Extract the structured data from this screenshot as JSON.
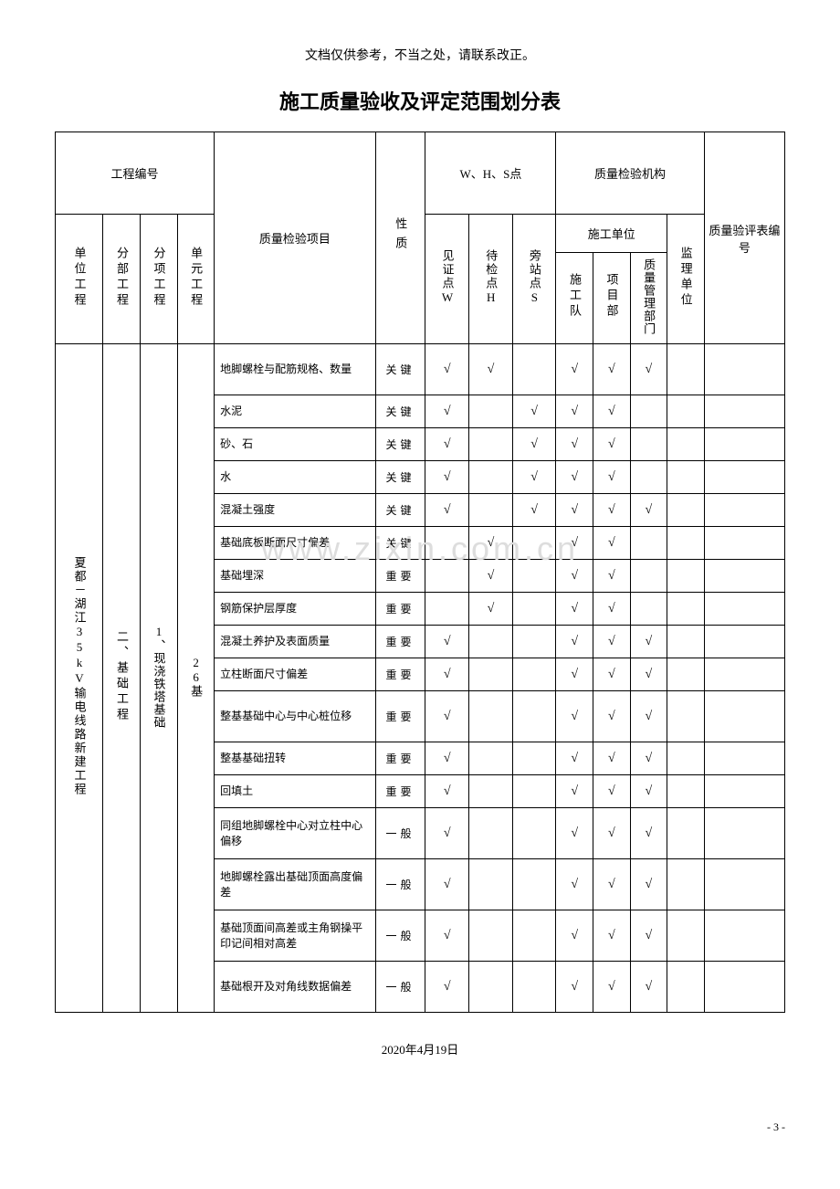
{
  "header_note": "文档仅供参考，不当之处，请联系改正。",
  "title": "施工质量验收及评定范围划分表",
  "headers": {
    "project_number": "工程编号",
    "whs": "W、H、S点",
    "agency": "质量检验机构",
    "form_number": "质量验评表编号",
    "unit_project": "单位工程",
    "sub_project": "分部工程",
    "item_project": "分项工程",
    "unit_element": "单元工程",
    "inspection_item": "质量检验项目",
    "nature": "性质",
    "witness_w": "见证点W",
    "hold_h": "待检点H",
    "side_s": "旁站点S",
    "construction_unit": "施工单位",
    "team": "施工队",
    "project_dept": "项目部",
    "quality_dept": "质量管理部门",
    "supervisor": "监理单位"
  },
  "col1": "夏都－湖江35kV输电线路新建工程",
  "col2": "二、基础工程",
  "col3": "1、现浇铁塔基础",
  "col4": "26基",
  "rows": [
    {
      "item": "地脚螺栓与配筋规格、数量",
      "nature": "关键",
      "w": "√",
      "h": "√",
      "s": "",
      "team": "√",
      "dept": "√",
      "qd": "√",
      "sup": ""
    },
    {
      "item": "水泥",
      "nature": "关键",
      "w": "√",
      "h": "",
      "s": "√",
      "team": "√",
      "dept": "√",
      "qd": "",
      "sup": ""
    },
    {
      "item": "砂、石",
      "nature": "关键",
      "w": "√",
      "h": "",
      "s": "√",
      "team": "√",
      "dept": "√",
      "qd": "",
      "sup": ""
    },
    {
      "item": "水",
      "nature": "关键",
      "w": "√",
      "h": "",
      "s": "√",
      "team": "√",
      "dept": "√",
      "qd": "",
      "sup": ""
    },
    {
      "item": "混凝土强度",
      "nature": "关键",
      "w": "√",
      "h": "",
      "s": "√",
      "team": "√",
      "dept": "√",
      "qd": "√",
      "sup": ""
    },
    {
      "item": "基础底板断面尺寸偏差",
      "nature": "关键",
      "w": "",
      "h": "√",
      "s": "",
      "team": "√",
      "dept": "√",
      "qd": "",
      "sup": ""
    },
    {
      "item": "基础埋深",
      "nature": "重要",
      "w": "",
      "h": "√",
      "s": "",
      "team": "√",
      "dept": "√",
      "qd": "",
      "sup": ""
    },
    {
      "item": "钢筋保护层厚度",
      "nature": "重要",
      "w": "",
      "h": "√",
      "s": "",
      "team": "√",
      "dept": "√",
      "qd": "",
      "sup": ""
    },
    {
      "item": "混凝土养护及表面质量",
      "nature": "重要",
      "w": "√",
      "h": "",
      "s": "",
      "team": "√",
      "dept": "√",
      "qd": "√",
      "sup": ""
    },
    {
      "item": "立柱断面尺寸偏差",
      "nature": "重要",
      "w": "√",
      "h": "",
      "s": "",
      "team": "√",
      "dept": "√",
      "qd": "√",
      "sup": ""
    },
    {
      "item": "整基基础中心与中心桩位移",
      "nature": "重要",
      "w": "√",
      "h": "",
      "s": "",
      "team": "√",
      "dept": "√",
      "qd": "√",
      "sup": ""
    },
    {
      "item": "整基基础扭转",
      "nature": "重要",
      "w": "√",
      "h": "",
      "s": "",
      "team": "√",
      "dept": "√",
      "qd": "√",
      "sup": ""
    },
    {
      "item": "回填土",
      "nature": "重要",
      "w": "√",
      "h": "",
      "s": "",
      "team": "√",
      "dept": "√",
      "qd": "√",
      "sup": ""
    },
    {
      "item": "同组地脚螺栓中心对立柱中心偏移",
      "nature": "一般",
      "w": "√",
      "h": "",
      "s": "",
      "team": "√",
      "dept": "√",
      "qd": "√",
      "sup": ""
    },
    {
      "item": "地脚螺栓露出基础顶面高度偏差",
      "nature": "一般",
      "w": "√",
      "h": "",
      "s": "",
      "team": "√",
      "dept": "√",
      "qd": "√",
      "sup": ""
    },
    {
      "item": "基础顶面间高差或主角钢操平印记间相对高差",
      "nature": "一般",
      "w": "√",
      "h": "",
      "s": "",
      "team": "√",
      "dept": "√",
      "qd": "√",
      "sup": ""
    },
    {
      "item": "基础根开及对角线数据偏差",
      "nature": "一般",
      "w": "√",
      "h": "",
      "s": "",
      "team": "√",
      "dept": "√",
      "qd": "√",
      "sup": ""
    }
  ],
  "footer_date": "2020年4月19日",
  "page_number": "- 3 -",
  "watermark": "www.zixin.com.cn"
}
